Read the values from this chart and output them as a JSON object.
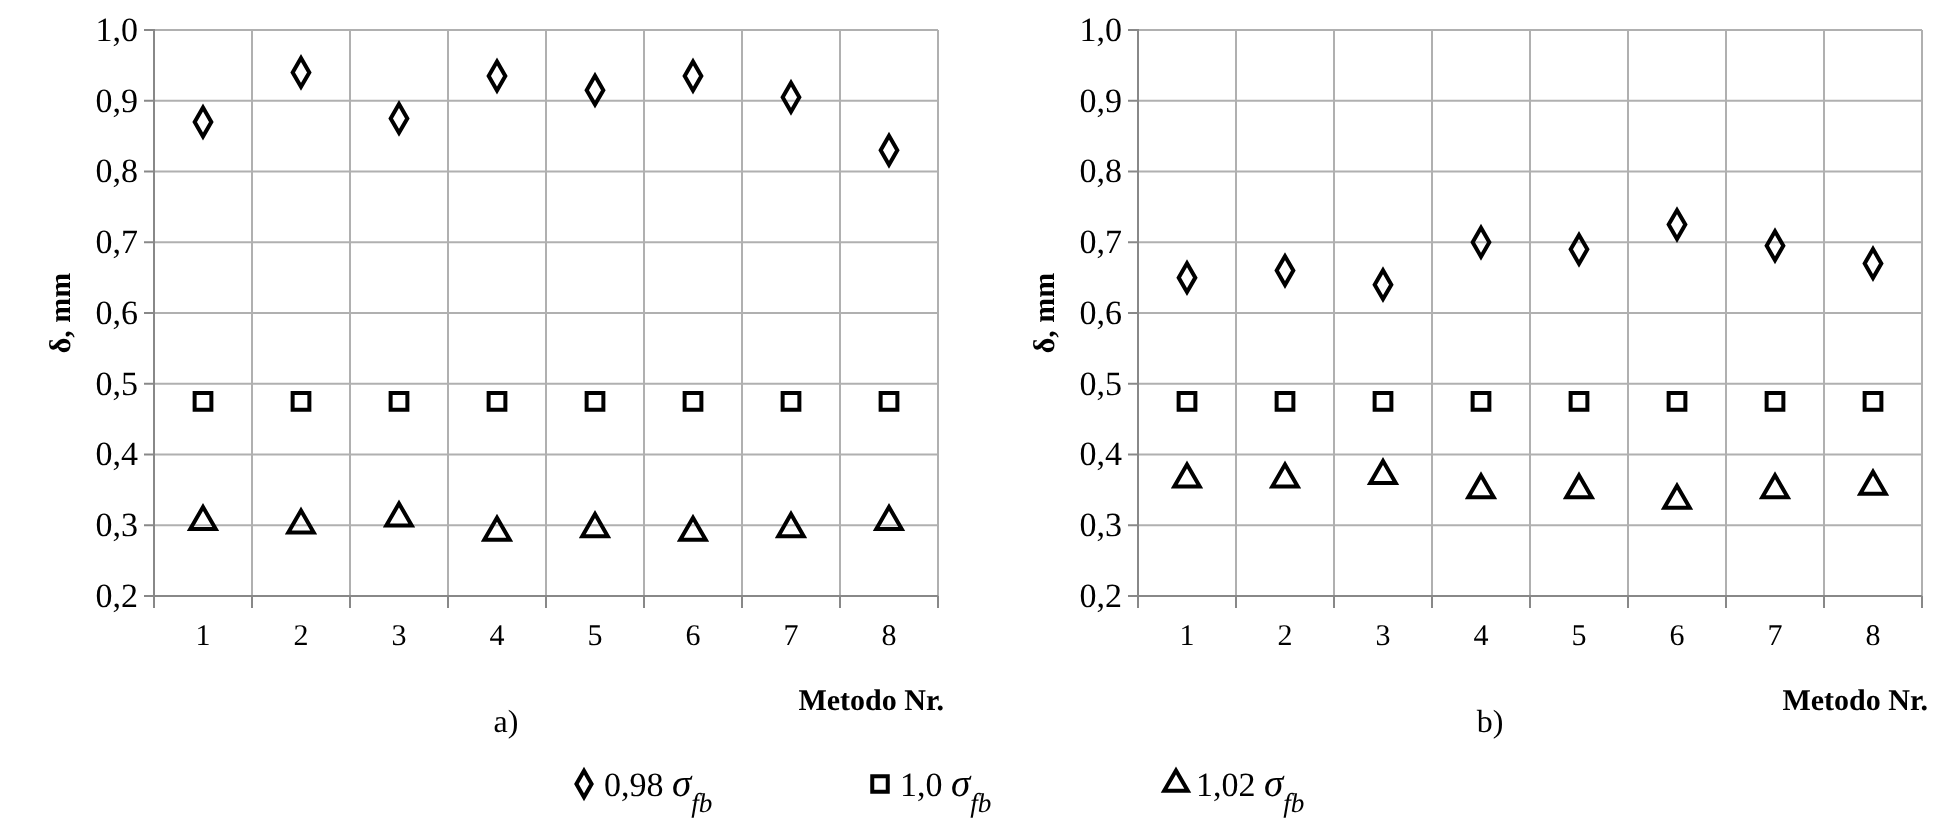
{
  "chart_data": [
    {
      "type": "scatter",
      "ylabel": "δ, mm",
      "xlabel": "Metodo Nr.",
      "annotations": [
        "a)"
      ],
      "categories": [
        "1",
        "2",
        "3",
        "4",
        "5",
        "6",
        "7",
        "8"
      ],
      "ylim": [
        0.2,
        1.0
      ],
      "yticks": [
        {
          "value": 0.2,
          "label": "0,2"
        },
        {
          "value": 0.3,
          "label": "0,3"
        },
        {
          "value": 0.4,
          "label": "0,4"
        },
        {
          "value": 0.5,
          "label": "0,5"
        },
        {
          "value": 0.6,
          "label": "0,6"
        },
        {
          "value": 0.7,
          "label": "0,7"
        },
        {
          "value": 0.8,
          "label": "0,8"
        },
        {
          "value": 0.9,
          "label": "0,9"
        },
        {
          "value": 1.0,
          "label": "1,0"
        }
      ],
      "grid": true,
      "legend": "bottom",
      "series": [
        {
          "name": "0,98 σ$_{fb}$",
          "color": "#000000",
          "marker": "diamond",
          "values": [
            0.87,
            0.94,
            0.875,
            0.935,
            0.915,
            0.935,
            0.905,
            0.83
          ]
        },
        {
          "name": "1,0 σ$_{fb}$",
          "color": "#000000",
          "marker": "square",
          "values": [
            0.475,
            0.475,
            0.475,
            0.475,
            0.475,
            0.475,
            0.475,
            0.475
          ]
        },
        {
          "name": "1,02 σ$_{fb}$",
          "color": "#000000",
          "marker": "triangle",
          "values": [
            0.305,
            0.3,
            0.31,
            0.29,
            0.295,
            0.29,
            0.295,
            0.305
          ]
        }
      ]
    },
    {
      "type": "scatter",
      "ylabel": "δ, mm",
      "xlabel": "Metodo Nr.",
      "annotations": [
        "b)"
      ],
      "categories": [
        "1",
        "2",
        "3",
        "4",
        "5",
        "6",
        "7",
        "8"
      ],
      "ylim": [
        0.2,
        1.0
      ],
      "yticks": [
        {
          "value": 0.2,
          "label": "0,2"
        },
        {
          "value": 0.3,
          "label": "0,3"
        },
        {
          "value": 0.4,
          "label": "0,4"
        },
        {
          "value": 0.5,
          "label": "0,5"
        },
        {
          "value": 0.6,
          "label": "0,6"
        },
        {
          "value": 0.7,
          "label": "0,7"
        },
        {
          "value": 0.8,
          "label": "0,8"
        },
        {
          "value": 0.9,
          "label": "0,9"
        },
        {
          "value": 1.0,
          "label": "1,0"
        }
      ],
      "grid": true,
      "series": [
        {
          "color": "#000000",
          "marker": "diamond",
          "values": [
            0.65,
            0.66,
            0.64,
            0.7,
            0.69,
            0.725,
            0.695,
            0.67
          ]
        },
        {
          "color": "#000000",
          "marker": "square",
          "values": [
            0.475,
            0.475,
            0.475,
            0.475,
            0.475,
            0.475,
            0.475,
            0.475
          ]
        },
        {
          "color": "#000000",
          "marker": "triangle",
          "values": [
            0.365,
            0.365,
            0.37,
            0.35,
            0.35,
            0.335,
            0.35,
            0.355
          ]
        }
      ]
    }
  ]
}
